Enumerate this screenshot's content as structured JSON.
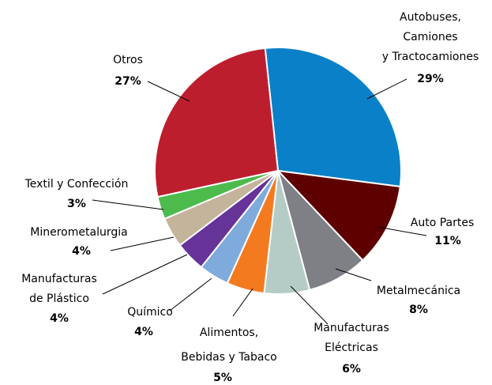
{
  "chart_data": {
    "type": "pie",
    "categories": [
      [
        "Autobuses,",
        "Camiones",
        "y Tractocamiones"
      ],
      [
        "Auto Partes"
      ],
      [
        "Metalmecánica"
      ],
      [
        "Manufacturas",
        "Eléctricas"
      ],
      [
        "Alimentos,",
        "Bebidas y Tabaco"
      ],
      [
        "Químico"
      ],
      [
        "Manufacturas",
        "de Plástico"
      ],
      [
        "Minerometalurgia"
      ],
      [
        "Textil y Confección"
      ],
      [
        "Otros"
      ]
    ],
    "values": [
      29,
      11,
      8,
      6,
      5,
      4,
      4,
      4,
      3,
      27
    ],
    "value_labels": [
      "29%",
      "11%",
      "8%",
      "6%",
      "5%",
      "4%",
      "4%",
      "4%",
      "3%",
      "27%"
    ],
    "colors": [
      "#0a80c8",
      "#5e0000",
      "#7f7f86",
      "#b4cbc6",
      "#f47a20",
      "#7faadc",
      "#663399",
      "#c4b49c",
      "#4cbb4c",
      "#bd1e2e"
    ]
  }
}
